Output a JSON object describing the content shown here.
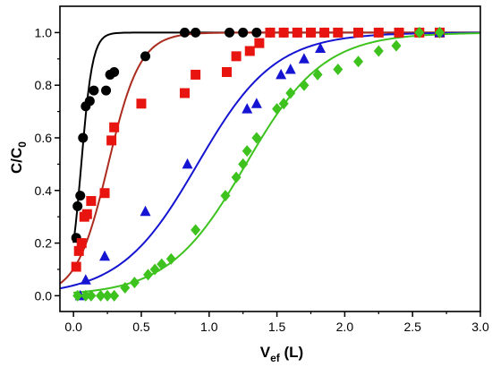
{
  "chart_data": {
    "type": "scatter",
    "xlabel_main": "V",
    "xlabel_sub": "ef",
    "xlabel_unit": " (L)",
    "ylabel_main": "C/C",
    "ylabel_sub": "0",
    "xlim": [
      -0.1,
      3.0
    ],
    "ylim": [
      -0.06,
      1.1
    ],
    "x_ticks": [
      "0.0",
      "0.5",
      "1.0",
      "1.5",
      "2.0",
      "2.5",
      "3.0"
    ],
    "y_ticks": [
      "0.0",
      "0.2",
      "0.4",
      "0.6",
      "0.8",
      "1.0"
    ],
    "grid": false,
    "series": [
      {
        "marker": "circle",
        "color": "#000000",
        "points": [
          [
            0.02,
            0.22
          ],
          [
            0.03,
            0.34
          ],
          [
            0.05,
            0.38
          ],
          [
            0.07,
            0.6
          ],
          [
            0.09,
            0.72
          ],
          [
            0.12,
            0.74
          ],
          [
            0.15,
            0.78
          ],
          [
            0.24,
            0.78
          ],
          [
            0.27,
            0.84
          ],
          [
            0.3,
            0.85
          ],
          [
            0.53,
            0.91
          ],
          [
            0.82,
            1.0
          ],
          [
            0.9,
            1.0
          ],
          [
            1.15,
            1.0
          ],
          [
            1.25,
            1.0
          ],
          [
            1.35,
            1.0
          ],
          [
            1.45,
            1.0
          ],
          [
            1.55,
            1.0
          ],
          [
            1.65,
            1.0
          ],
          [
            1.75,
            1.0
          ],
          [
            1.85,
            1.0
          ]
        ]
      },
      {
        "marker": "square",
        "color": "#e8140f",
        "points": [
          [
            0.02,
            0.11
          ],
          [
            0.04,
            0.17
          ],
          [
            0.06,
            0.2
          ],
          [
            0.08,
            0.3
          ],
          [
            0.1,
            0.31
          ],
          [
            0.13,
            0.36
          ],
          [
            0.23,
            0.39
          ],
          [
            0.28,
            0.59
          ],
          [
            0.3,
            0.64
          ],
          [
            0.5,
            0.73
          ],
          [
            0.82,
            0.77
          ],
          [
            0.9,
            0.84
          ],
          [
            1.13,
            0.85
          ],
          [
            1.2,
            0.91
          ],
          [
            1.3,
            0.93
          ],
          [
            1.37,
            0.96
          ],
          [
            1.45,
            1.0
          ],
          [
            1.55,
            1.0
          ],
          [
            1.65,
            1.0
          ],
          [
            1.75,
            1.0
          ],
          [
            1.85,
            1.0
          ],
          [
            1.95,
            1.0
          ],
          [
            2.1,
            1.0
          ],
          [
            2.25,
            1.0
          ],
          [
            2.4,
            1.0
          ],
          [
            2.55,
            1.0
          ],
          [
            2.7,
            1.0
          ]
        ]
      },
      {
        "marker": "triangle",
        "color": "#1414d2",
        "points": [
          [
            0.05,
            0.0
          ],
          [
            0.09,
            0.06
          ],
          [
            0.23,
            0.15
          ],
          [
            0.53,
            0.32
          ],
          [
            0.84,
            0.5
          ],
          [
            1.28,
            0.71
          ],
          [
            1.35,
            0.73
          ],
          [
            1.53,
            0.84
          ],
          [
            1.6,
            0.86
          ],
          [
            1.7,
            0.9
          ],
          [
            1.82,
            0.94
          ],
          [
            2.7,
            1.0
          ]
        ]
      },
      {
        "marker": "diamond",
        "color": "#3dc21e",
        "points": [
          [
            0.03,
            0.0
          ],
          [
            0.09,
            0.0
          ],
          [
            0.13,
            0.0
          ],
          [
            0.2,
            0.0
          ],
          [
            0.25,
            0.0
          ],
          [
            0.3,
            0.0
          ],
          [
            0.38,
            0.03
          ],
          [
            0.45,
            0.05
          ],
          [
            0.55,
            0.08
          ],
          [
            0.6,
            0.1
          ],
          [
            0.65,
            0.12
          ],
          [
            0.72,
            0.14
          ],
          [
            0.9,
            0.25
          ],
          [
            1.12,
            0.38
          ],
          [
            1.2,
            0.45
          ],
          [
            1.25,
            0.5
          ],
          [
            1.28,
            0.55
          ],
          [
            1.35,
            0.6
          ],
          [
            1.5,
            0.71
          ],
          [
            1.55,
            0.73
          ],
          [
            1.6,
            0.77
          ],
          [
            1.7,
            0.8
          ],
          [
            1.8,
            0.84
          ],
          [
            1.95,
            0.86
          ],
          [
            2.1,
            0.89
          ],
          [
            2.25,
            0.93
          ],
          [
            2.38,
            0.95
          ],
          [
            2.55,
            1.0
          ],
          [
            2.7,
            1.0
          ]
        ]
      }
    ],
    "fits": [
      {
        "color": "#000000",
        "x0": 0.0575,
        "k": 24.0,
        "y_min": 0.0,
        "x_start": 0.0,
        "x_end": 3.0
      },
      {
        "color": "#ab2c1e",
        "x0": 0.2562,
        "k": 8.5,
        "y_min": 0.0,
        "x_start": -0.1,
        "x_end": 3.0
      },
      {
        "color": "#1414d2",
        "x0": 0.9143,
        "k": 3.5,
        "y_min": 0.0,
        "x_start": -0.1,
        "x_end": 3.0
      },
      {
        "color": "#3dc21e",
        "x0": 1.2714,
        "k": 3.5,
        "y_min": 0.0,
        "x_start": 0.0,
        "x_end": 3.0
      }
    ]
  }
}
